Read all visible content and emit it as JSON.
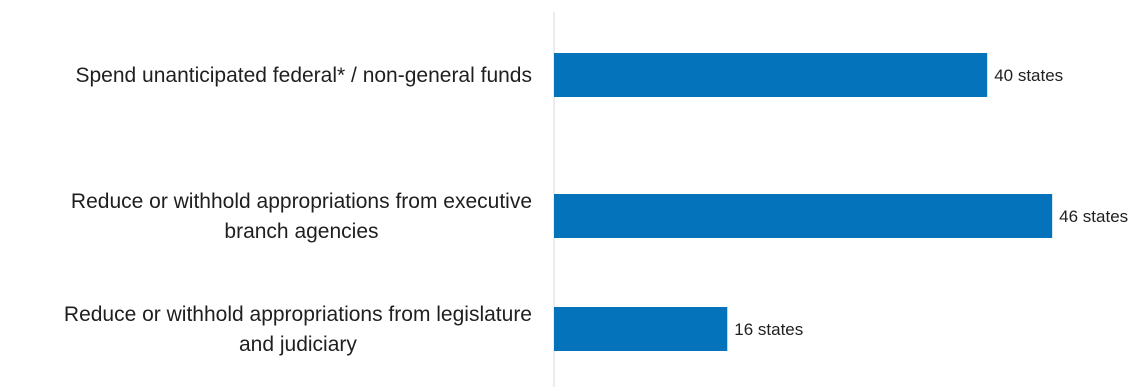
{
  "chart_data": {
    "type": "bar",
    "orientation": "horizontal",
    "title": "",
    "xlabel": "",
    "ylabel": "",
    "categories": [
      [
        "Spend unanticipated federal* / non-general funds"
      ],
      [
        "Reduce or withhold appropriations from executive",
        "branch agencies"
      ],
      [
        "Reduce or withhold appropriations from legislature",
        "and judiciary"
      ]
    ],
    "values": [
      40,
      46,
      16
    ],
    "data_labels": [
      "40 states",
      "46 states",
      "16 states"
    ],
    "xlim": [
      0,
      50
    ],
    "grid": false,
    "legend": "none",
    "bar_color": "#0572BC"
  }
}
